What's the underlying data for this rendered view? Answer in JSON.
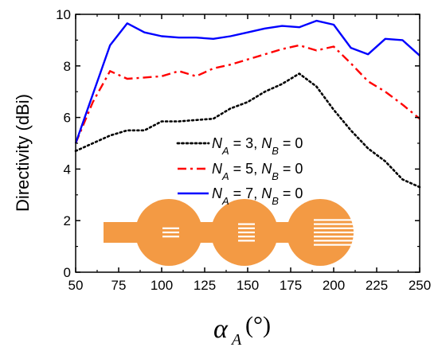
{
  "chart_data": {
    "type": "line",
    "xlabel": {
      "symbol": "α",
      "subscript": "A",
      "unit": "(°)"
    },
    "ylabel": "Directivity (dBi)",
    "xlim": [
      50,
      250
    ],
    "ylim": [
      0,
      10
    ],
    "xticks": [
      50,
      75,
      100,
      125,
      150,
      175,
      200,
      225,
      250
    ],
    "yticks": [
      0,
      2,
      4,
      6,
      8,
      10
    ],
    "legend_position": "center-right",
    "grid": false,
    "series": [
      {
        "name": "N_A = 3, N_B = 0",
        "legend": {
          "a_val": "3",
          "b_val": "0"
        },
        "color": "#000000",
        "style": "dotted",
        "x": [
          50,
          60,
          70,
          80,
          90,
          100,
          110,
          120,
          130,
          140,
          150,
          160,
          170,
          180,
          190,
          200,
          210,
          220,
          230,
          240,
          250
        ],
        "y": [
          4.7,
          5.0,
          5.3,
          5.5,
          5.5,
          5.85,
          5.85,
          5.9,
          5.95,
          6.35,
          6.6,
          7.0,
          7.3,
          7.7,
          7.2,
          6.3,
          5.5,
          4.8,
          4.3,
          3.6,
          3.3
        ]
      },
      {
        "name": "N_A = 5, N_B = 0",
        "legend": {
          "a_val": "5",
          "b_val": "0"
        },
        "color": "#ff0000",
        "style": "dashdot",
        "x": [
          50,
          60,
          70,
          80,
          90,
          100,
          110,
          120,
          130,
          140,
          150,
          160,
          170,
          180,
          190,
          200,
          210,
          220,
          230,
          240,
          250
        ],
        "y": [
          5.0,
          6.6,
          7.8,
          7.5,
          7.55,
          7.6,
          7.8,
          7.6,
          7.9,
          8.05,
          8.25,
          8.45,
          8.65,
          8.8,
          8.6,
          8.75,
          8.1,
          7.4,
          7.0,
          6.5,
          5.95
        ]
      },
      {
        "name": "N_A = 7, N_B = 0",
        "legend": {
          "a_val": "7",
          "b_val": "0"
        },
        "color": "#0000ff",
        "style": "solid",
        "x": [
          50,
          60,
          70,
          80,
          90,
          100,
          110,
          120,
          130,
          140,
          150,
          160,
          170,
          180,
          190,
          200,
          210,
          220,
          230,
          240,
          250
        ],
        "y": [
          5.0,
          6.9,
          8.8,
          9.65,
          9.3,
          9.15,
          9.1,
          9.1,
          9.05,
          9.15,
          9.3,
          9.45,
          9.55,
          9.5,
          9.75,
          9.6,
          8.7,
          8.45,
          9.05,
          9.0,
          8.4
        ]
      }
    ],
    "inset_antennas": {
      "count": 3,
      "color": "#f39a44",
      "slots": [
        3,
        5,
        7
      ]
    }
  }
}
